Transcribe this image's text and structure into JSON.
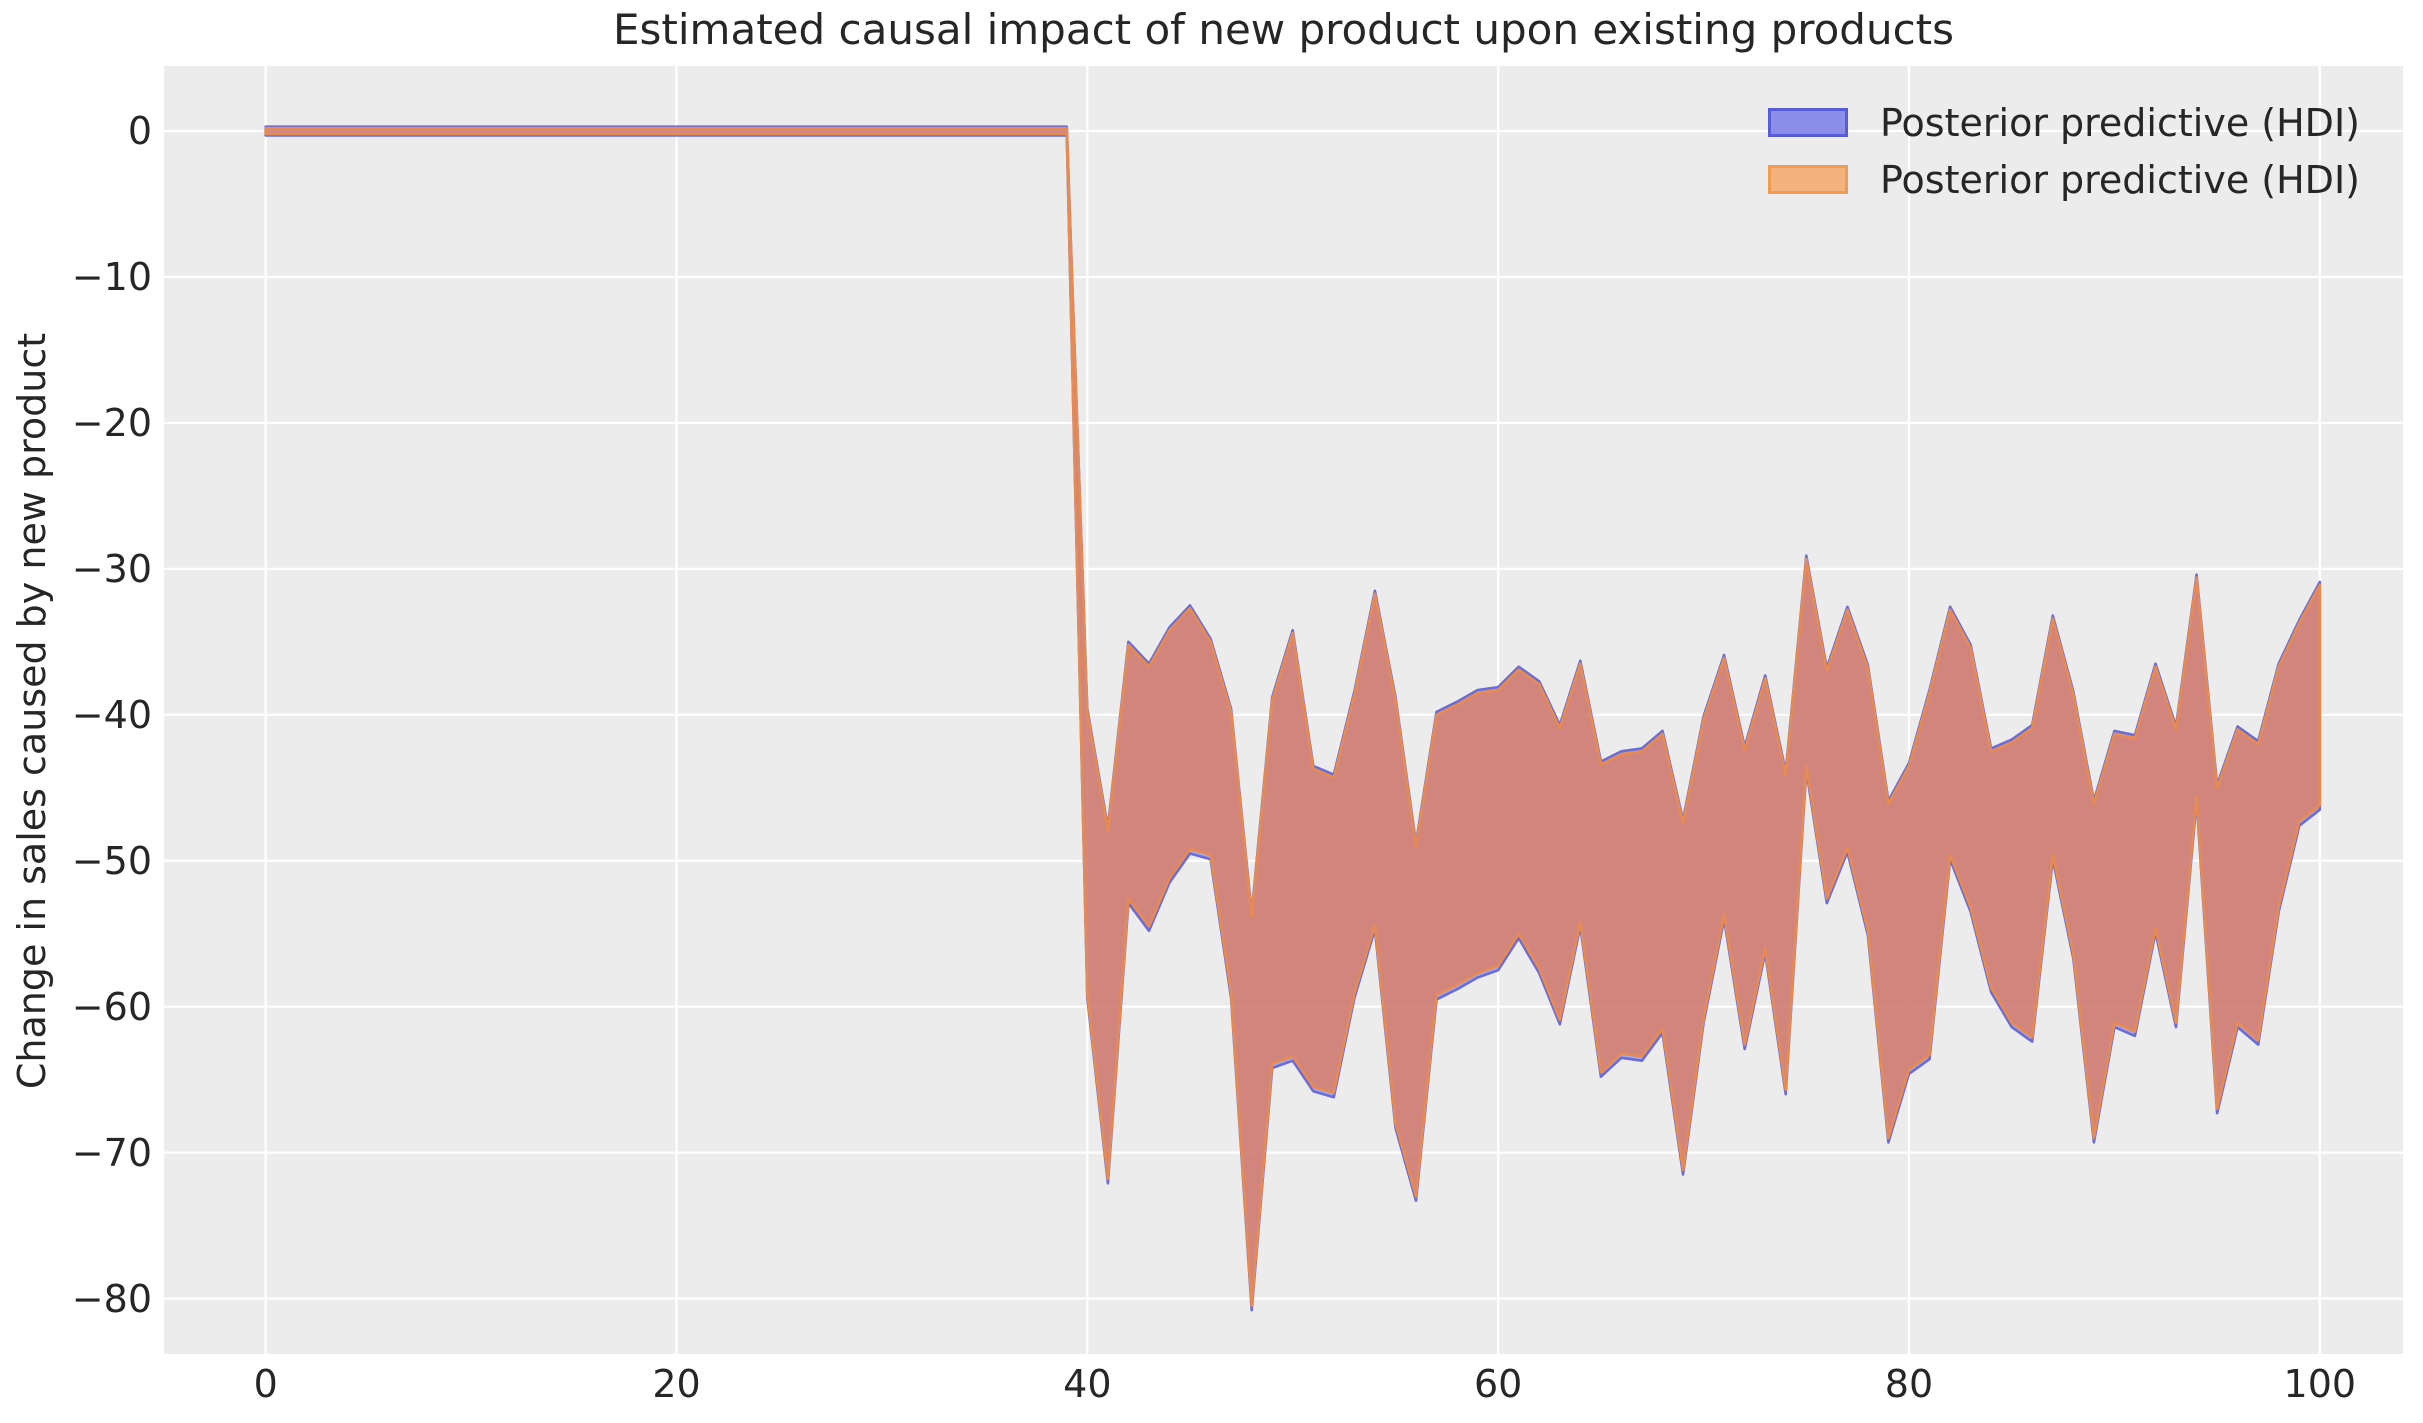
{
  "figure": {
    "title": "Estimated causal impact of new product upon existing products",
    "y_axis_label": "Change in sales caused by new product",
    "x_axis_label": "",
    "background_color": "#ffffff",
    "plot_background_color": "#ececec",
    "grid_color": "#ffffff",
    "text_color": "#262626"
  },
  "legend": {
    "position": "upper right",
    "entries": [
      {
        "label": "Posterior predictive (HDI)",
        "swatch_fill": "#8b8de9",
        "swatch_border": "#585cd9"
      },
      {
        "label": "Posterior predictive (HDI)",
        "swatch_fill": "#f4b27e",
        "swatch_border": "#f09c50"
      }
    ]
  },
  "chart_data": {
    "type": "area",
    "subtype": "hdi-band",
    "title": "Estimated causal impact of new product upon existing products",
    "xlabel": "",
    "ylabel": "Change in sales caused by new product",
    "xlim": [
      -4.95,
      104.05
    ],
    "ylim": [
      -83.8,
      4.46
    ],
    "grid": true,
    "legend_position": "upper right",
    "intervention_x": 39,
    "xticks": [
      {
        "value": 0,
        "label": "0"
      },
      {
        "value": 20,
        "label": "20"
      },
      {
        "value": 40,
        "label": "40"
      },
      {
        "value": 60,
        "label": "60"
      },
      {
        "value": 80,
        "label": "80"
      },
      {
        "value": 100,
        "label": "100"
      }
    ],
    "yticks": [
      {
        "value": 0,
        "label": "0"
      },
      {
        "value": -10,
        "label": "−10"
      },
      {
        "value": -20,
        "label": "−20"
      },
      {
        "value": -30,
        "label": "−30"
      },
      {
        "value": -40,
        "label": "−40"
      },
      {
        "value": -50,
        "label": "−50"
      },
      {
        "value": -60,
        "label": "−60"
      },
      {
        "value": -70,
        "label": "−70"
      },
      {
        "value": -80,
        "label": "−80"
      }
    ],
    "x": [
      0,
      1,
      2,
      3,
      4,
      5,
      6,
      7,
      8,
      9,
      10,
      11,
      12,
      13,
      14,
      15,
      16,
      17,
      18,
      19,
      20,
      21,
      22,
      23,
      24,
      25,
      26,
      27,
      28,
      29,
      30,
      31,
      32,
      33,
      34,
      35,
      36,
      37,
      38,
      39,
      40,
      41,
      42,
      43,
      44,
      45,
      46,
      47,
      48,
      49,
      50,
      51,
      52,
      53,
      54,
      55,
      56,
      57,
      58,
      59,
      60,
      61,
      62,
      63,
      64,
      65,
      66,
      67,
      68,
      69,
      70,
      71,
      72,
      73,
      74,
      75,
      76,
      77,
      78,
      79,
      80,
      81,
      82,
      83,
      84,
      85,
      86,
      87,
      88,
      89,
      90,
      91,
      92,
      93,
      94,
      95,
      96,
      97,
      98,
      99,
      100
    ],
    "series": [
      {
        "name": "Posterior predictive (HDI)",
        "role": "hdi-band",
        "stroke": "#6a6cd8",
        "fill": "rgba(98,100,220,0.5)",
        "upper": [
          0.3,
          0.3,
          0.3,
          0.3,
          0.3,
          0.3,
          0.3,
          0.3,
          0.3,
          0.3,
          0.3,
          0.3,
          0.3,
          0.3,
          0.3,
          0.3,
          0.3,
          0.3,
          0.3,
          0.3,
          0.3,
          0.3,
          0.3,
          0.3,
          0.3,
          0.3,
          0.3,
          0.3,
          0.3,
          0.3,
          0.3,
          0.3,
          0.3,
          0.3,
          0.3,
          0.3,
          0.3,
          0.3,
          0.3,
          0.3,
          -39.6,
          -47.7,
          -35.0,
          -36.5,
          -34.0,
          -32.5,
          -34.8,
          -39.6,
          -53.6,
          -38.8,
          -34.2,
          -43.5,
          -44.1,
          -38.4,
          -31.5,
          -38.8,
          -48.8,
          -39.8,
          -39.1,
          -38.3,
          -38.1,
          -36.7,
          -37.7,
          -40.7,
          -36.3,
          -43.2,
          -42.5,
          -42.3,
          -41.1,
          -47.2,
          -40.1,
          -35.9,
          -42.2,
          -37.3,
          -43.9,
          -29.1,
          -36.8,
          -32.6,
          -36.6,
          -45.9,
          -43.3,
          -38.3,
          -32.6,
          -35.2,
          -42.3,
          -41.7,
          -40.7,
          -33.2,
          -38.4,
          -45.9,
          -41.1,
          -41.4,
          -36.5,
          -40.8,
          -30.4,
          -44.8,
          -40.8,
          -41.8,
          -36.5,
          -33.5,
          -30.9
        ],
        "lower": [
          -0.3,
          -0.3,
          -0.3,
          -0.3,
          -0.3,
          -0.3,
          -0.3,
          -0.3,
          -0.3,
          -0.3,
          -0.3,
          -0.3,
          -0.3,
          -0.3,
          -0.3,
          -0.3,
          -0.3,
          -0.3,
          -0.3,
          -0.3,
          -0.3,
          -0.3,
          -0.3,
          -0.3,
          -0.3,
          -0.3,
          -0.3,
          -0.3,
          -0.3,
          -0.3,
          -0.3,
          -0.3,
          -0.3,
          -0.3,
          -0.3,
          -0.3,
          -0.3,
          -0.3,
          -0.3,
          -0.3,
          -59.4,
          -72.1,
          -52.9,
          -54.8,
          -51.5,
          -49.5,
          -49.9,
          -59.4,
          -80.8,
          -64.2,
          -63.7,
          -65.8,
          -66.2,
          -59.4,
          -54.7,
          -68.3,
          -73.3,
          -59.5,
          -58.8,
          -58.0,
          -57.5,
          -55.3,
          -57.7,
          -61.2,
          -54.5,
          -64.8,
          -63.5,
          -63.7,
          -61.8,
          -71.5,
          -61.1,
          -54.0,
          -62.9,
          -56.3,
          -66.0,
          -43.8,
          -52.9,
          -49.4,
          -55.1,
          -69.3,
          -64.6,
          -63.6,
          -49.9,
          -53.5,
          -59.0,
          -61.4,
          -62.4,
          -49.9,
          -56.7,
          -69.3,
          -61.4,
          -62.0,
          -54.9,
          -61.4,
          -45.9,
          -67.3,
          -61.4,
          -62.6,
          -53.5,
          -47.6,
          -46.5
        ]
      },
      {
        "name": "Posterior predictive (HDI)",
        "role": "hdi-band",
        "stroke": "#e78b52",
        "fill": "rgba(226,118,80,0.7)",
        "upper": [
          0.2,
          0.2,
          0.2,
          0.2,
          0.2,
          0.2,
          0.2,
          0.2,
          0.2,
          0.2,
          0.2,
          0.2,
          0.2,
          0.2,
          0.2,
          0.2,
          0.2,
          0.2,
          0.2,
          0.2,
          0.2,
          0.2,
          0.2,
          0.2,
          0.2,
          0.2,
          0.2,
          0.2,
          0.2,
          0.2,
          0.2,
          0.2,
          0.2,
          0.2,
          0.2,
          0.2,
          0.2,
          0.2,
          0.2,
          0.2,
          -39.8,
          -47.9,
          -35.2,
          -36.7,
          -34.2,
          -32.7,
          -35.0,
          -39.8,
          -53.8,
          -39.0,
          -34.4,
          -43.7,
          -44.3,
          -38.6,
          -31.7,
          -39.0,
          -49.0,
          -40.0,
          -39.3,
          -38.5,
          -38.3,
          -36.9,
          -37.9,
          -40.9,
          -36.5,
          -43.4,
          -42.7,
          -42.5,
          -41.3,
          -47.4,
          -40.3,
          -36.1,
          -42.4,
          -37.5,
          -44.1,
          -29.3,
          -37.0,
          -32.8,
          -36.8,
          -46.1,
          -43.5,
          -38.5,
          -32.8,
          -35.4,
          -42.5,
          -41.9,
          -40.9,
          -33.4,
          -38.6,
          -46.1,
          -41.3,
          -41.6,
          -36.7,
          -41.0,
          -30.6,
          -45.0,
          -41.0,
          -42.0,
          -36.7,
          -33.7,
          -31.1
        ],
        "lower": [
          -0.2,
          -0.2,
          -0.2,
          -0.2,
          -0.2,
          -0.2,
          -0.2,
          -0.2,
          -0.2,
          -0.2,
          -0.2,
          -0.2,
          -0.2,
          -0.2,
          -0.2,
          -0.2,
          -0.2,
          -0.2,
          -0.2,
          -0.2,
          -0.2,
          -0.2,
          -0.2,
          -0.2,
          -0.2,
          -0.2,
          -0.2,
          -0.2,
          -0.2,
          -0.2,
          -0.2,
          -0.2,
          -0.2,
          -0.2,
          -0.2,
          -0.2,
          -0.2,
          -0.2,
          -0.2,
          -0.2,
          -59.1,
          -71.8,
          -52.6,
          -54.5,
          -51.2,
          -49.2,
          -49.6,
          -59.1,
          -80.5,
          -63.9,
          -63.4,
          -65.5,
          -65.9,
          -59.1,
          -54.4,
          -68.0,
          -73.0,
          -59.2,
          -58.5,
          -57.7,
          -57.2,
          -55.0,
          -57.4,
          -60.9,
          -54.2,
          -64.5,
          -63.2,
          -63.4,
          -61.5,
          -71.2,
          -60.8,
          -53.7,
          -62.6,
          -56.0,
          -65.7,
          -43.5,
          -52.6,
          -49.1,
          -54.8,
          -69.0,
          -64.3,
          -63.3,
          -49.6,
          -53.2,
          -58.7,
          -61.1,
          -62.1,
          -49.6,
          -56.4,
          -69.0,
          -61.1,
          -61.7,
          -54.6,
          -61.1,
          -45.6,
          -67.0,
          -61.1,
          -62.3,
          -53.2,
          -47.3,
          -46.2
        ]
      }
    ]
  }
}
